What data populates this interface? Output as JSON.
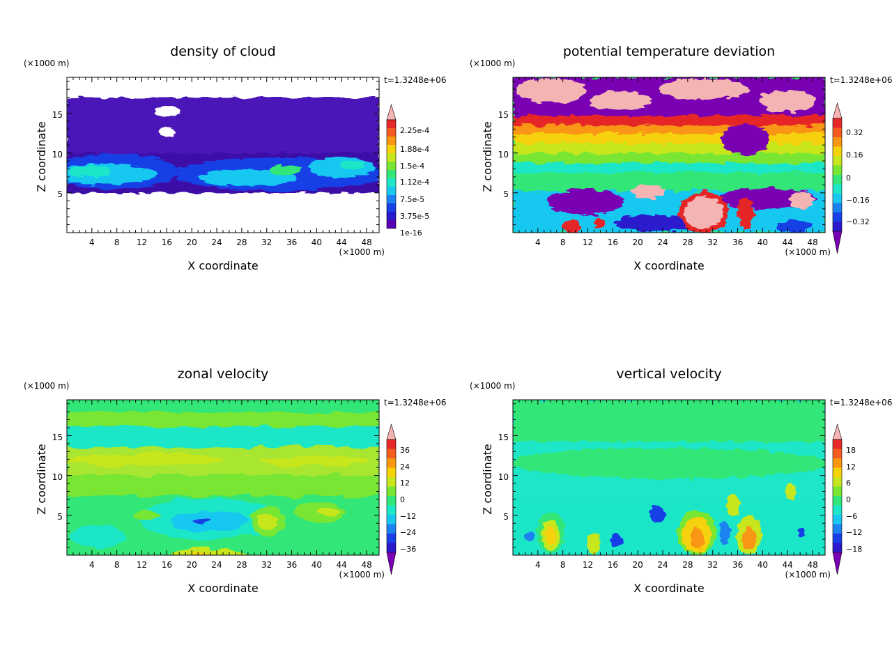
{
  "chart_data": [
    {
      "type": "heatmap",
      "title": "density of cloud",
      "xlabel": "X coordinate",
      "ylabel": "Z coordinate",
      "x_unit": "(×1000 m)",
      "y_unit": "(×1000 m)",
      "time_label": "t=1.3248e+06",
      "xlim": [
        0,
        50
      ],
      "ylim": [
        0,
        19.5
      ],
      "xticks": [
        "4",
        "8",
        "12",
        "16",
        "20",
        "24",
        "28",
        "32",
        "36",
        "40",
        "44",
        "48"
      ],
      "yticks": [
        "5",
        "10",
        "15"
      ],
      "colorbar": {
        "labels": [
          "2.25e-4",
          "1.88e-4",
          "1.5e-4",
          "1.12e-4",
          "7.5e-5",
          "3.75e-5",
          "1e-16"
        ],
        "colors": [
          "#5a00b4",
          "#2b1acc",
          "#1840e6",
          "#1c82f0",
          "#19c8f0",
          "#1ee6c8",
          "#32e678",
          "#78e632",
          "#c8e61e",
          "#f5d20a",
          "#fa9612",
          "#f55a1e",
          "#e62828",
          "#f5b4b4"
        ]
      }
    },
    {
      "type": "heatmap",
      "title": "potential temperature deviation",
      "xlabel": "X coordinate",
      "ylabel": "Z coordinate",
      "x_unit": "(×1000 m)",
      "y_unit": "(×1000 m)",
      "time_label": "t=1.3248e+06",
      "xlim": [
        0,
        50
      ],
      "ylim": [
        0,
        19.5
      ],
      "xticks": [
        "4",
        "8",
        "12",
        "16",
        "20",
        "24",
        "28",
        "32",
        "36",
        "40",
        "44",
        "48"
      ],
      "yticks": [
        "5",
        "10",
        "15"
      ],
      "colorbar": {
        "labels": [
          "0.32",
          "0.16",
          "0",
          "−0.16",
          "−0.32"
        ],
        "colors": [
          "#7a00b4",
          "#2b1acc",
          "#1840e6",
          "#1c82f0",
          "#19c8f0",
          "#1ee6c8",
          "#32e678",
          "#78e632",
          "#c8e61e",
          "#f5d20a",
          "#fa9612",
          "#f55a1e",
          "#e62828",
          "#f5b4b4"
        ]
      }
    },
    {
      "type": "heatmap",
      "title": "zonal velocity",
      "xlabel": "X coordinate",
      "ylabel": "Z coordinate",
      "x_unit": "(×1000 m)",
      "y_unit": "(×1000 m)",
      "time_label": "t=1.3248e+06",
      "xlim": [
        0,
        50
      ],
      "ylim": [
        0,
        19.5
      ],
      "xticks": [
        "4",
        "8",
        "12",
        "16",
        "20",
        "24",
        "28",
        "32",
        "36",
        "40",
        "44",
        "48"
      ],
      "yticks": [
        "5",
        "10",
        "15"
      ],
      "colorbar": {
        "labels": [
          "36",
          "24",
          "12",
          "0",
          "−12",
          "−24",
          "−36"
        ],
        "colors": [
          "#7a00b4",
          "#2b1acc",
          "#1840e6",
          "#1c82f0",
          "#19c8f0",
          "#1ee6c8",
          "#32e678",
          "#78e632",
          "#c8e61e",
          "#f5d20a",
          "#fa9612",
          "#f55a1e",
          "#e62828",
          "#f5b4b4"
        ]
      }
    },
    {
      "type": "heatmap",
      "title": "vertical velocity",
      "xlabel": "X coordinate",
      "ylabel": "Z coordinate",
      "x_unit": "(×1000 m)",
      "y_unit": "(×1000 m)",
      "time_label": "t=1.3248e+06",
      "xlim": [
        0,
        50
      ],
      "ylim": [
        0,
        19.5
      ],
      "xticks": [
        "4",
        "8",
        "12",
        "16",
        "20",
        "24",
        "28",
        "32",
        "36",
        "40",
        "44",
        "48"
      ],
      "yticks": [
        "5",
        "10",
        "15"
      ],
      "colorbar": {
        "labels": [
          "18",
          "12",
          "6",
          "0",
          "−6",
          "−12",
          "−18"
        ],
        "colors": [
          "#7a00b4",
          "#2b1acc",
          "#1840e6",
          "#1c82f0",
          "#19c8f0",
          "#1ee6c8",
          "#32e678",
          "#78e632",
          "#c8e61e",
          "#f5d20a",
          "#fa9612",
          "#f55a1e",
          "#e62828",
          "#f5b4b4"
        ]
      }
    }
  ]
}
